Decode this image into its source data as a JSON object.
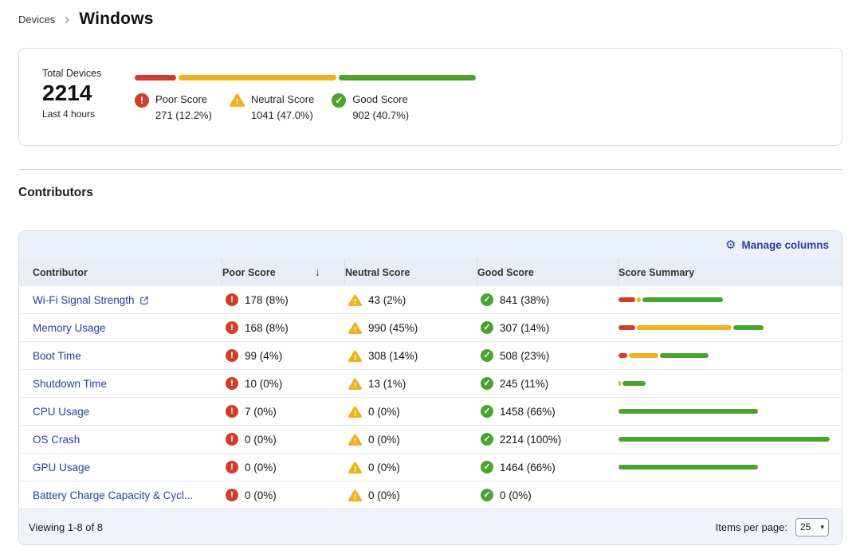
{
  "colors": {
    "poor": "#d03d2a",
    "neutral": "#f2b01e",
    "good": "#4aa42c",
    "link": "#2c3e9e"
  },
  "breadcrumb": {
    "parent": "Devices",
    "current": "Windows"
  },
  "summary": {
    "total_label": "Total Devices",
    "total_value": "2214",
    "period": "Last 4 hours",
    "segments": [
      {
        "key": "poor",
        "label": "Poor Score",
        "value": "271 (12.2%)",
        "pct": 12.2
      },
      {
        "key": "neutral",
        "label": "Neutral Score",
        "value": "1041 (47.0%)",
        "pct": 47.0
      },
      {
        "key": "good",
        "label": "Good Score",
        "value": "902 (40.7%)",
        "pct": 40.7
      }
    ]
  },
  "contributors": {
    "title": "Contributors",
    "manage_columns_label": "Manage columns",
    "columns": [
      "Contributor",
      "Poor Score",
      "Neutral Score",
      "Good Score",
      "Score Summary"
    ],
    "rows": [
      {
        "name": "Wi-Fi Signal Strength",
        "external": true,
        "poor": "178 (8%)",
        "neutral": "43 (2%)",
        "good": "841 (38%)",
        "bar": {
          "poor": 8,
          "neutral": 2,
          "good": 38
        }
      },
      {
        "name": "Memory Usage",
        "external": false,
        "poor": "168 (8%)",
        "neutral": "990 (45%)",
        "good": "307 (14%)",
        "bar": {
          "poor": 8,
          "neutral": 45,
          "good": 14
        }
      },
      {
        "name": "Boot Time",
        "external": false,
        "poor": "99 (4%)",
        "neutral": "308 (14%)",
        "good": "508 (23%)",
        "bar": {
          "poor": 4,
          "neutral": 14,
          "good": 23
        }
      },
      {
        "name": "Shutdown Time",
        "external": false,
        "poor": "10 (0%)",
        "neutral": "13 (1%)",
        "good": "245 (11%)",
        "bar": {
          "poor": 0,
          "neutral": 1,
          "good": 11
        }
      },
      {
        "name": "CPU Usage",
        "external": false,
        "poor": "7 (0%)",
        "neutral": "0 (0%)",
        "good": "1458 (66%)",
        "bar": {
          "poor": 0,
          "neutral": 0,
          "good": 66
        }
      },
      {
        "name": "OS Crash",
        "external": false,
        "poor": "0 (0%)",
        "neutral": "0 (0%)",
        "good": "2214 (100%)",
        "bar": {
          "poor": 0,
          "neutral": 0,
          "good": 100
        }
      },
      {
        "name": "GPU Usage",
        "external": false,
        "poor": "0 (0%)",
        "neutral": "0 (0%)",
        "good": "1464 (66%)",
        "bar": {
          "poor": 0,
          "neutral": 0,
          "good": 66
        }
      },
      {
        "name": "Battery Charge Capacity & Cycl...",
        "external": false,
        "poor": "0 (0%)",
        "neutral": "0 (0%)",
        "good": "0 (0%)",
        "bar": {
          "poor": 0,
          "neutral": 0,
          "good": 0
        }
      }
    ],
    "footer": {
      "viewing": "Viewing 1-8 of 8",
      "items_per_page_label": "Items per page:",
      "items_per_page_value": "25"
    }
  }
}
